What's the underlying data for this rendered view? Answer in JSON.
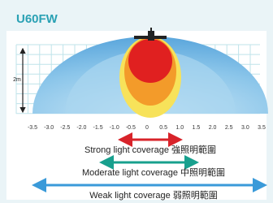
{
  "header": {
    "title": "U60FW"
  },
  "scale": {
    "height_label": "2m"
  },
  "x_labels": [
    "-3.5",
    "-3.0",
    "-2.5",
    "-2.0",
    "-1.5",
    "-1.0",
    "-0.5",
    "0",
    "0.5",
    "1.0",
    "1.5",
    "2.0",
    "2.5",
    "3.0",
    "3.5"
  ],
  "legend": [
    {
      "label": "Strong light coverage 強照明範圍"
    },
    {
      "label": "Moderate light coverage 中照明範圍"
    },
    {
      "label": "Weak light coverage 弱照明範圍"
    }
  ]
}
